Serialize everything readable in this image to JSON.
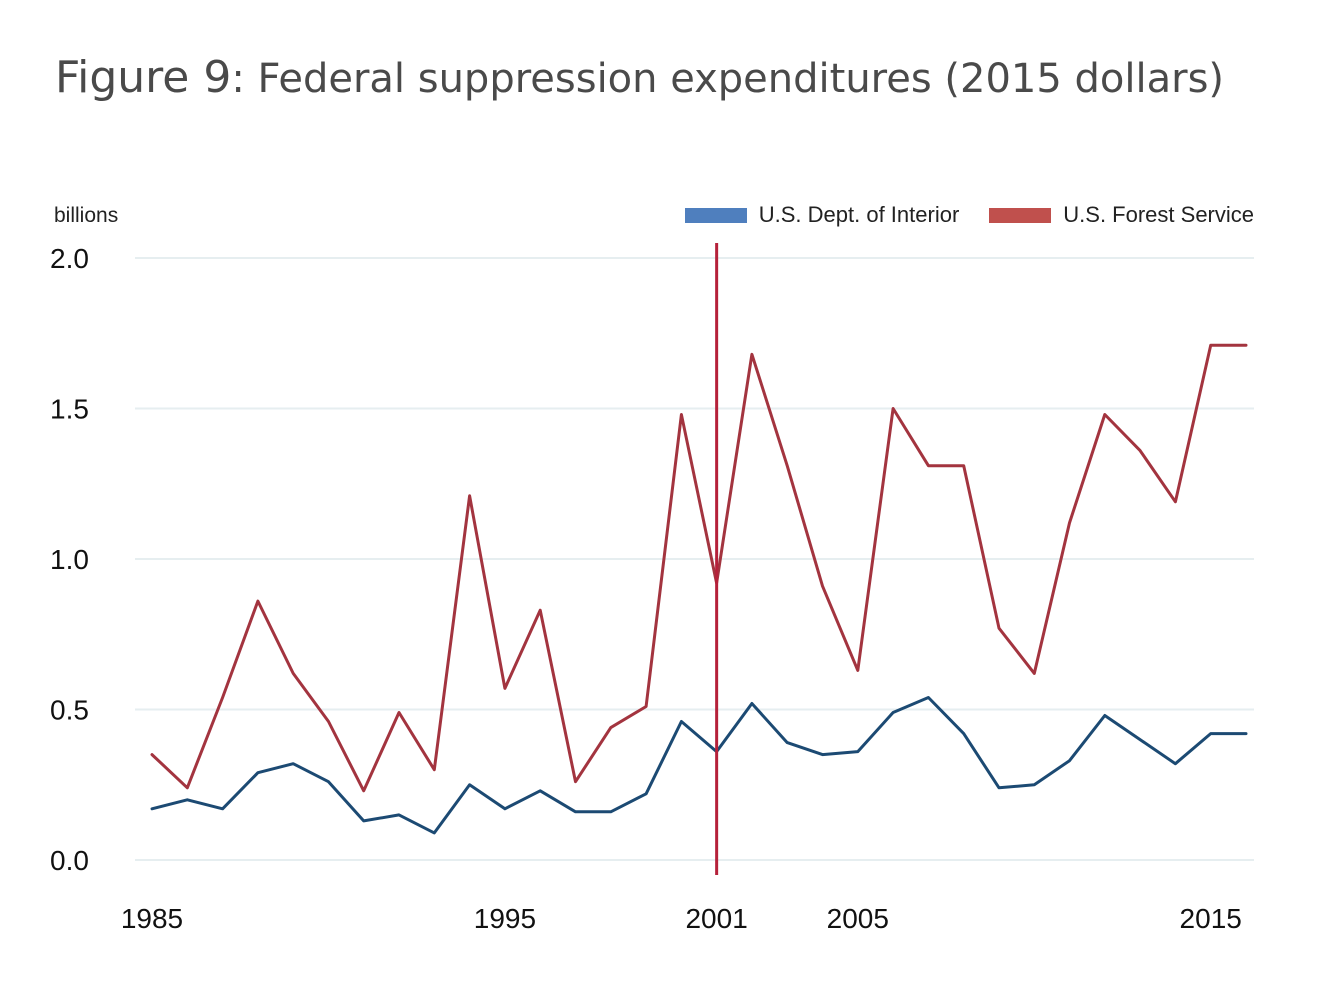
{
  "title": {
    "lead": "Figure 9",
    "rest": ": Federal suppression expenditures (2015 dollars)"
  },
  "colors": {
    "interior": "#1c4a73",
    "forest": "#a3343f",
    "legend_interior": "#4f7fbe",
    "legend_forest": "#c0504d",
    "marker": "#b5213a",
    "grid": "#e6eef0"
  },
  "chart_data": {
    "type": "line",
    "title": "Figure 9: Federal suppression expenditures (2015 dollars)",
    "ylabel": "billions",
    "xlabel": "",
    "xlim": [
      1985,
      2016
    ],
    "ylim": [
      0,
      2.0
    ],
    "yticks": [
      "0.0",
      "0.5",
      "1.0",
      "1.5",
      "2.0"
    ],
    "xticks": [
      1985,
      1995,
      2001,
      2005,
      2015
    ],
    "grid": true,
    "legend_position": "top-right",
    "vertical_marker": 2001,
    "x": [
      1985,
      1986,
      1987,
      1988,
      1989,
      1990,
      1991,
      1992,
      1993,
      1994,
      1995,
      1996,
      1997,
      1998,
      1999,
      2000,
      2001,
      2002,
      2003,
      2004,
      2005,
      2006,
      2007,
      2008,
      2009,
      2010,
      2011,
      2012,
      2013,
      2014,
      2015,
      2016
    ],
    "series": [
      {
        "name": "U.S. Dept. of Interior",
        "values": [
          0.17,
          0.2,
          0.17,
          0.29,
          0.32,
          0.26,
          0.13,
          0.15,
          0.09,
          0.25,
          0.17,
          0.23,
          0.16,
          0.16,
          0.22,
          0.46,
          0.36,
          0.52,
          0.39,
          0.35,
          0.36,
          0.49,
          0.54,
          0.42,
          0.24,
          0.25,
          0.33,
          0.48,
          0.4,
          0.32,
          0.42,
          0.42
        ]
      },
      {
        "name": "U.S. Forest Service",
        "values": [
          0.35,
          0.24,
          0.54,
          0.86,
          0.62,
          0.46,
          0.23,
          0.49,
          0.3,
          1.21,
          0.57,
          0.83,
          0.26,
          0.44,
          0.51,
          1.48,
          0.92,
          1.68,
          1.31,
          0.91,
          0.63,
          1.5,
          1.31,
          1.31,
          0.77,
          0.62,
          1.12,
          1.48,
          1.36,
          1.19,
          1.71,
          1.71
        ]
      }
    ]
  }
}
